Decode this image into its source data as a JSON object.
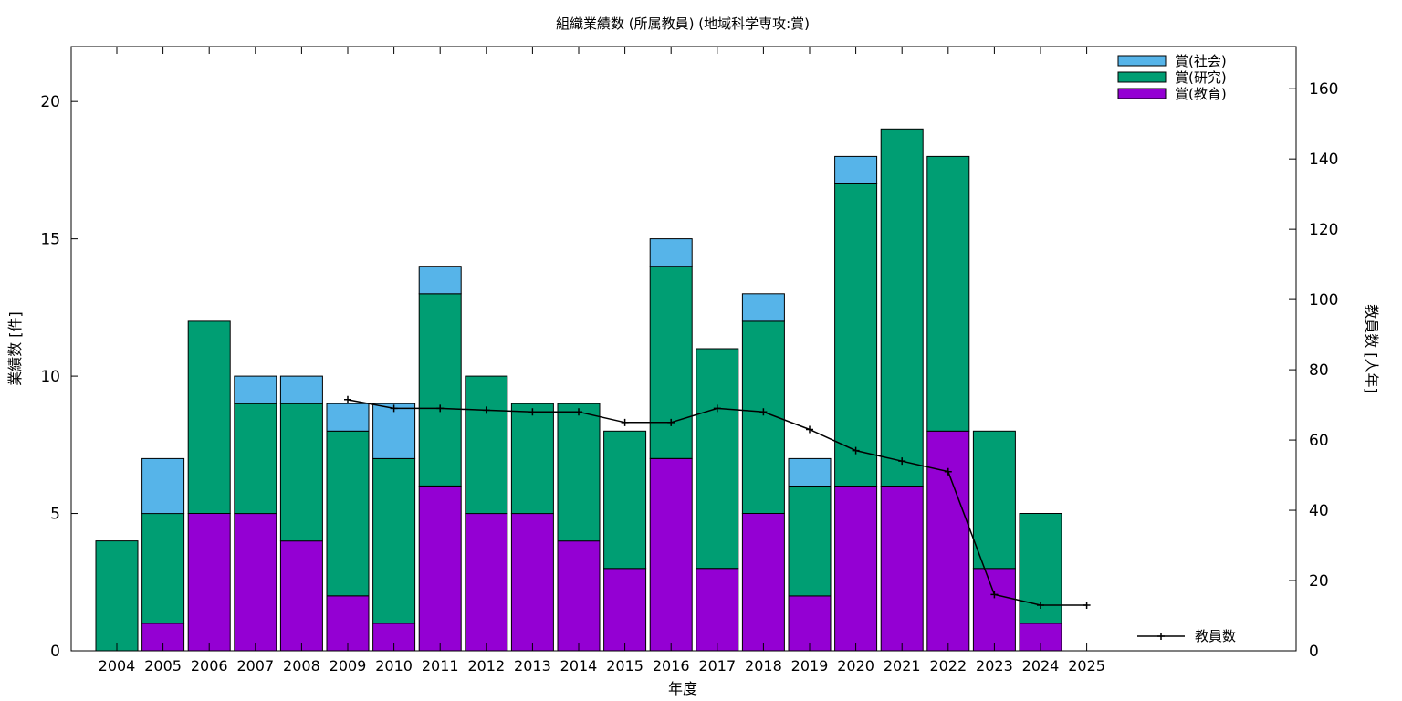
{
  "chart_data": {
    "type": "bar",
    "title": "組織業績数 (所属教員) (地域科学専攻:賞)",
    "xlabel": "年度",
    "ylabel": "業績数 [件]",
    "y2label": "教員数 [人年]",
    "ylim": [
      0,
      22
    ],
    "y2lim": [
      0,
      172
    ],
    "yticks": [
      0,
      5,
      10,
      15,
      20
    ],
    "y2ticks": [
      0,
      20,
      40,
      60,
      80,
      100,
      120,
      140,
      160
    ],
    "categories": [
      "2004",
      "2005",
      "2006",
      "2007",
      "2008",
      "2009",
      "2010",
      "2011",
      "2012",
      "2013",
      "2014",
      "2015",
      "2016",
      "2017",
      "2018",
      "2019",
      "2020",
      "2021",
      "2022",
      "2023",
      "2024",
      "2025"
    ],
    "stacked": true,
    "series": [
      {
        "name": "賞(教育)",
        "color": "#9400d3",
        "values": [
          0,
          1,
          5,
          5,
          4,
          2,
          1,
          6,
          5,
          5,
          4,
          3,
          7,
          3,
          5,
          2,
          6,
          6,
          8,
          3,
          1,
          0
        ]
      },
      {
        "name": "賞(研究)",
        "color": "#009e73",
        "values": [
          4,
          4,
          7,
          4,
          5,
          6,
          6,
          7,
          5,
          4,
          5,
          5,
          7,
          8,
          7,
          4,
          11,
          13,
          10,
          5,
          4,
          0
        ]
      },
      {
        "name": "賞(社会)",
        "color": "#56b4e9",
        "values": [
          0,
          2,
          0,
          1,
          1,
          1,
          2,
          1,
          0,
          0,
          0,
          0,
          1,
          0,
          1,
          1,
          1,
          0,
          0,
          0,
          0,
          0
        ]
      }
    ],
    "line_series": {
      "name": "教員数",
      "axis": "y2",
      "color": "#000000",
      "x": [
        "2009",
        "2010",
        "2011",
        "2012",
        "2013",
        "2014",
        "2015",
        "2016",
        "2017",
        "2018",
        "2019",
        "2020",
        "2021",
        "2022",
        "2023",
        "2024",
        "2025"
      ],
      "values": [
        71.5,
        69,
        69,
        68.5,
        68,
        68,
        65,
        65,
        69,
        68,
        63,
        57,
        54,
        51,
        16,
        13,
        13
      ]
    },
    "legend_order": [
      "賞(社会)",
      "賞(研究)",
      "賞(教育)"
    ],
    "legend_position": "top-right",
    "line_legend_position": "bottom-right",
    "grid": false
  }
}
